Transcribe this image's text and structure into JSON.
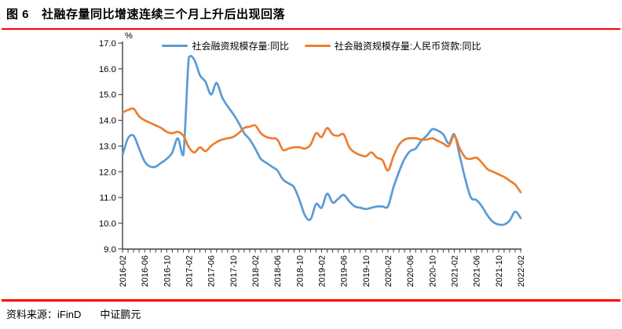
{
  "header": {
    "figure_label": "图 6",
    "title": "社融存量同比增速连续三个月上升后出现回落"
  },
  "footer": {
    "source_label": "资料来源：iFinD",
    "org": "中证鹏元"
  },
  "colors": {
    "rule_red": "#FE0000",
    "axis": "#404040",
    "series_blue": "#5B9BD5",
    "series_orange": "#ED7D31"
  },
  "chart_data": {
    "type": "line",
    "title": "",
    "unit_label": "%",
    "xlabel": "",
    "ylabel": "%",
    "ylim": [
      9.0,
      17.0
    ],
    "ytick_step": 1.0,
    "ytick_labels": [
      "9.0",
      "10.0",
      "11.0",
      "12.0",
      "13.0",
      "14.0",
      "15.0",
      "16.0",
      "17.0"
    ],
    "x_start": "2016-02",
    "x_end": "2022-02",
    "x_freq": "monthly",
    "xtick_every": 4,
    "xtick_labels": [
      "2016-02",
      "2016-06",
      "2016-10",
      "2017-02",
      "2017-06",
      "2017-10",
      "2018-02",
      "2018-06",
      "2018-10",
      "2019-02",
      "2019-06",
      "2019-10",
      "2020-02",
      "2020-06",
      "2020-10",
      "2021-02",
      "2021-06",
      "2021-10",
      "2022-02"
    ],
    "grid": false,
    "legend_position": "top",
    "line_style": "smooth",
    "series": [
      {
        "name": "社会融资规模存量:同比",
        "color": "#5B9BD5",
        "values": [
          12.65,
          13.3,
          13.4,
          12.9,
          12.4,
          12.2,
          12.2,
          12.35,
          12.5,
          12.75,
          13.3,
          12.65,
          16.45,
          16.35,
          15.75,
          15.5,
          15.0,
          15.45,
          14.9,
          14.55,
          14.25,
          13.9,
          13.5,
          13.25,
          12.9,
          12.5,
          12.35,
          12.2,
          12.05,
          11.7,
          11.55,
          11.4,
          10.9,
          10.3,
          10.15,
          10.75,
          10.6,
          11.15,
          10.8,
          10.95,
          11.1,
          10.85,
          10.65,
          10.6,
          10.55,
          10.6,
          10.65,
          10.65,
          10.65,
          11.4,
          12.0,
          12.5,
          12.8,
          12.9,
          13.2,
          13.4,
          13.65,
          13.6,
          13.45,
          13.1,
          13.45,
          12.6,
          11.7,
          11.0,
          10.9,
          10.65,
          10.3,
          10.05,
          9.95,
          9.95,
          10.1,
          10.45,
          10.2
        ]
      },
      {
        "name": "社会融资规模存量:人民币贷款:同比",
        "color": "#ED7D31",
        "values": [
          14.3,
          14.4,
          14.45,
          14.15,
          14.0,
          13.9,
          13.8,
          13.7,
          13.55,
          13.5,
          13.55,
          13.4,
          12.95,
          12.75,
          12.95,
          12.8,
          13.0,
          13.15,
          13.25,
          13.3,
          13.35,
          13.5,
          13.7,
          13.75,
          13.8,
          13.5,
          13.35,
          13.3,
          13.25,
          12.85,
          12.9,
          12.95,
          12.95,
          12.9,
          13.05,
          13.5,
          13.35,
          13.7,
          13.45,
          13.4,
          13.45,
          12.95,
          12.75,
          12.65,
          12.6,
          12.75,
          12.55,
          12.45,
          12.05,
          12.6,
          13.05,
          13.25,
          13.3,
          13.3,
          13.25,
          13.25,
          13.3,
          13.2,
          13.1,
          13.0,
          13.4,
          12.9,
          12.55,
          12.5,
          12.55,
          12.35,
          12.1,
          12.0,
          11.9,
          11.8,
          11.65,
          11.5,
          11.2
        ]
      }
    ]
  }
}
